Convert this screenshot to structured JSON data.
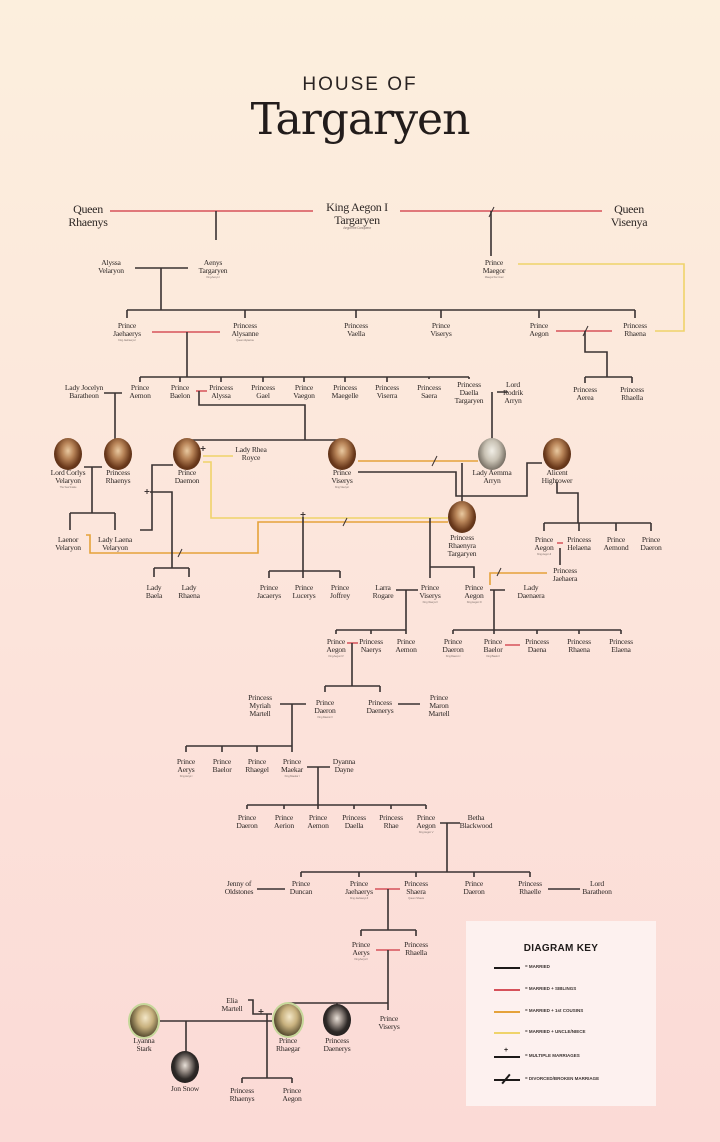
{
  "header": {
    "line1": "HOUSE OF",
    "line2": "Targaryen"
  },
  "colors": {
    "married": "#3a3232",
    "married_siblings": "#d6525a",
    "married_first_cousins": "#e5a23a",
    "married_uncle_niece": "#efd36a",
    "background_top": "#fcefdd",
    "background_bottom": "#fbdad6"
  },
  "people": [
    {
      "name": "Queen\nRhaenys"
    },
    {
      "name": "King Aegon I\nTargaryen",
      "sub": "Aegon the Conqueror"
    },
    {
      "name": "Queen\nVisenya"
    },
    {
      "name": "Alyssa\nVelaryon"
    },
    {
      "name": "Aenys\nTargaryen",
      "sub": "King Aenys I"
    },
    {
      "name": "Prince\nMaegor",
      "sub": "Maegor the Cruel"
    },
    {
      "name": "Prince\nJaehaerys",
      "sub": "King Jaehaerys I"
    },
    {
      "name": "Princess\nAlysanne",
      "sub": "Queen Alysanne"
    },
    {
      "name": "Princess\nVaella"
    },
    {
      "name": "Prince\nViserys"
    },
    {
      "name": "Prince\nAegon"
    },
    {
      "name": "Princess\nRhaena"
    },
    {
      "name": "Lady Jocelyn\nBaratheon"
    },
    {
      "name": "Prince\nAemon"
    },
    {
      "name": "Prince\nBaelon"
    },
    {
      "name": "Princess\nAlyssa"
    },
    {
      "name": "Princess\nGael"
    },
    {
      "name": "Prince\nVaegon"
    },
    {
      "name": "Princess\nMaegelle"
    },
    {
      "name": "Princess\nViserra"
    },
    {
      "name": "Princess\nSaera"
    },
    {
      "name": "Princess\nDaella\nTargaryen"
    },
    {
      "name": "Lord\nRodrik\nArryn"
    },
    {
      "name": "Princess\nAerea"
    },
    {
      "name": "Princess\nRhaella"
    },
    {
      "name": "Lord Corlys\nVelaryon",
      "sub": "The Sea Snake"
    },
    {
      "name": "Princess\nRhaenys"
    },
    {
      "name": "Prince\nDaemon"
    },
    {
      "name": "Lady Rhea\nRoyce"
    },
    {
      "name": "Prince\nViserys",
      "sub": "King Viserys I"
    },
    {
      "name": "Lady Aemma\nArryn"
    },
    {
      "name": "Alicent\nHightower"
    },
    {
      "name": "Princess\nRhaenyra\nTargaryen"
    },
    {
      "name": "Laenor\nVelaryon"
    },
    {
      "name": "Lady Laena\nVelaryon"
    },
    {
      "name": "Prince\nAegon",
      "sub": "King Aegon II"
    },
    {
      "name": "Princess\nHelaena"
    },
    {
      "name": "Prince\nAemond"
    },
    {
      "name": "Prince\nDaeron"
    },
    {
      "name": "Princess\nJaehaera"
    },
    {
      "name": "Lady\nBaela"
    },
    {
      "name": "Lady\nRhaena"
    },
    {
      "name": "Prince\nJacaerys"
    },
    {
      "name": "Prince\nLucerys"
    },
    {
      "name": "Prince\nJoffrey"
    },
    {
      "name": "Larra\nRogare"
    },
    {
      "name": "Prince\nViserys",
      "sub": "King Viserys II"
    },
    {
      "name": "Prince\nAegon",
      "sub": "King Aegon III"
    },
    {
      "name": "Lady\nDaenaera"
    },
    {
      "name": "Prince\nAegon",
      "sub": "King Aegon IV"
    },
    {
      "name": "Princess\nNaerys"
    },
    {
      "name": "Prince\nAemon"
    },
    {
      "name": "Prince\nDaeron",
      "sub": "King Daeron I"
    },
    {
      "name": "Prince\nBaelor",
      "sub": "King Baelor I"
    },
    {
      "name": "Princess\nDaena"
    },
    {
      "name": "Princess\nRhaena"
    },
    {
      "name": "Princess\nElaena"
    },
    {
      "name": "Princess\nMyriah\nMartell"
    },
    {
      "name": "Prince\nDaeron",
      "sub": "King Daeron II"
    },
    {
      "name": "Princess\nDaenerys"
    },
    {
      "name": "Prince\nMaron\nMartell"
    },
    {
      "name": "Prince\nAerys",
      "sub": "King Aerys I"
    },
    {
      "name": "Prince\nBaelor"
    },
    {
      "name": "Prince\nRhaegel"
    },
    {
      "name": "Prince\nMaekar",
      "sub": "King Maekar I"
    },
    {
      "name": "Dyanna\nDayne"
    },
    {
      "name": "Prince\nDaeron"
    },
    {
      "name": "Prince\nAerion"
    },
    {
      "name": "Prince\nAemon"
    },
    {
      "name": "Princess\nDaella"
    },
    {
      "name": "Princess\nRhae"
    },
    {
      "name": "Prince\nAegon",
      "sub": "King Aegon V"
    },
    {
      "name": "Betha\nBlackwood"
    },
    {
      "name": "Jenny of\nOldstones"
    },
    {
      "name": "Prince\nDuncan"
    },
    {
      "name": "Prince\nJaehaerys",
      "sub": "King Jaehaerys II"
    },
    {
      "name": "Princess\nShaera",
      "sub": "Queen Shaera"
    },
    {
      "name": "Prince\nDaeron"
    },
    {
      "name": "Princess\nRhaelle"
    },
    {
      "name": "Lord\nBaratheon"
    },
    {
      "name": "Prince\nAerys",
      "sub": "King Aerys II"
    },
    {
      "name": "Princess\nRhaella"
    },
    {
      "name": "Elia\nMartell"
    },
    {
      "name": "Prince\nViserys"
    },
    {
      "name": "Lyanna\nStark"
    },
    {
      "name": "Prince\nRhaegar"
    },
    {
      "name": "Princess\nDaenerys"
    },
    {
      "name": "Jon Snow"
    },
    {
      "name": "Princess\nRhaenys"
    },
    {
      "name": "Prince\nAegon"
    }
  ],
  "key": {
    "title": "DIAGRAM KEY",
    "items": [
      {
        "label": "= MARRIED",
        "color": "#1d1a19"
      },
      {
        "label": "= MARRIED + SIBLINGS",
        "color": "#d6525a"
      },
      {
        "label": "= MARRIED + 1st COUSINS",
        "color": "#e5a23a"
      },
      {
        "label": "= MARRIED + UNCLE/NIECE",
        "color": "#efd36a"
      },
      {
        "label": "= MULTIPLE MARRIAGES",
        "color": "#1d1a19",
        "marker": "plus"
      },
      {
        "label": "= DIVORCED/BROKEN MARRIAGE",
        "color": "#1d1a19",
        "marker": "slash"
      }
    ]
  }
}
